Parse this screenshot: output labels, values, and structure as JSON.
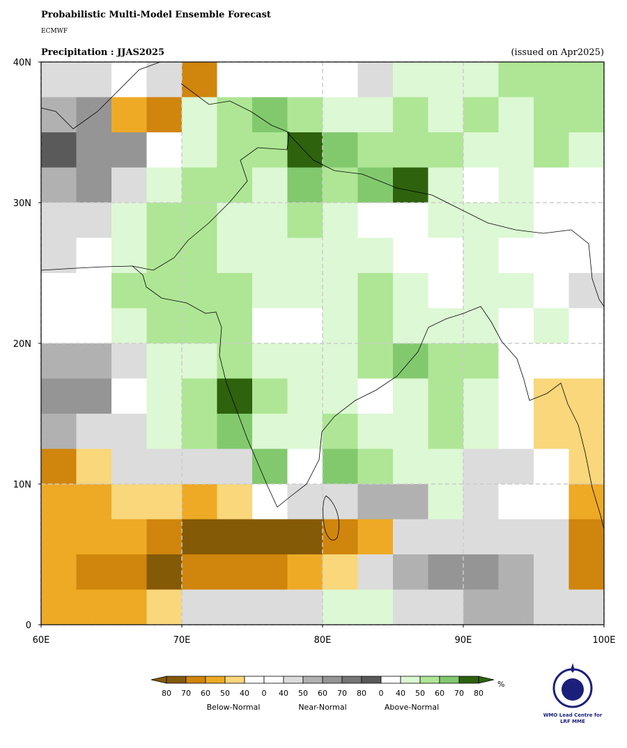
{
  "header": {
    "title": "Probabilistic Multi-Model Ensemble Forecast",
    "source": "ECMWF",
    "subtitle": "Precipitation : JJAS2025",
    "issued": "(issued on Apr2025)"
  },
  "map": {
    "xlim": [
      60,
      100
    ],
    "ylim": [
      0,
      40
    ],
    "xticks": [
      {
        "value": 60,
        "label": "60E"
      },
      {
        "value": 70,
        "label": "70E"
      },
      {
        "value": 80,
        "label": "80E"
      },
      {
        "value": 90,
        "label": "90E"
      },
      {
        "value": 100,
        "label": "100E"
      }
    ],
    "yticks": [
      {
        "value": 0,
        "label": "0"
      },
      {
        "value": 10,
        "label": "10N"
      },
      {
        "value": 20,
        "label": "20N"
      },
      {
        "value": 30,
        "label": "30N"
      },
      {
        "value": 40,
        "label": "40N"
      }
    ],
    "grid": true,
    "palette": {
      "A": "#845a06",
      "B": "#d0850c",
      "C": "#eeaa25",
      "D": "#f9d77a",
      "W": "#ffffff",
      "g": "#dcdcdc",
      "h": "#b0b1b0",
      "i": "#959595",
      "j": "#767676",
      "k": "#5a5a5a",
      "L": "#ddf8d4",
      "M": "#aee695",
      "N": "#82c96e",
      "O": "#2e620d"
    },
    "rows": [
      "ggWgBWWWWgLLLMMM",
      "hiCBLMNMLLMLMLMM",
      "kiiWLMMONMMMLLML",
      "higLMMLNMNOLWLWW",
      "ggLMMLLMLWWLLLWW",
      "gWLMMLLLLLWWLWWW",
      "WWMMMMLLLMLWLLWg",
      "WWLMMMWWLMLLLWLW",
      "hhgLLMLLLMNMMWWW",
      "iiWLMOMLLWLMLWDD",
      "hggLMNLLMLLMLWDD",
      "BDggggNWNMLLggWD",
      "CCDDCDWgghhLgWWC",
      "CCCBAAAABCgggggB",
      "CBBABBBCDghiihgB",
      "CCCDggggLLgghhgg"
    ]
  },
  "legend": {
    "boxes": [
      "A",
      "B",
      "C",
      "D",
      "W",
      "W",
      "g",
      "h",
      "i",
      "j",
      "k",
      "W",
      "L",
      "M",
      "N",
      "O"
    ],
    "labels": [
      80,
      70,
      60,
      50,
      40,
      0,
      40,
      50,
      60,
      70,
      80,
      0,
      40,
      50,
      60,
      70,
      80
    ],
    "groups": [
      "Below-Normal",
      "Near-Normal",
      "Above-Normal"
    ],
    "unit": "%"
  },
  "logo": {
    "line1": "WMO Lead Centre for",
    "line2": "LRF MME"
  }
}
